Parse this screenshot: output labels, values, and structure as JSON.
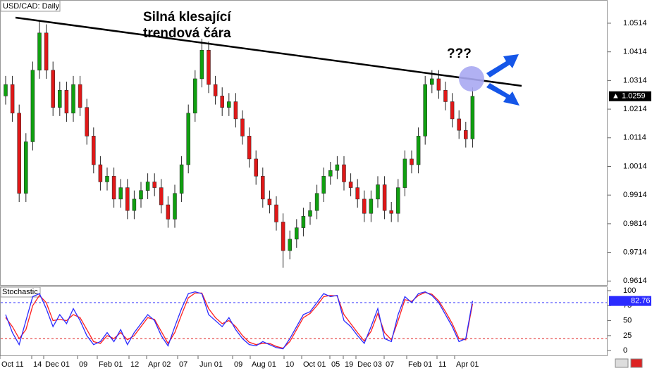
{
  "chart_data": [
    {
      "type": "candlestick",
      "title": "USD/CAD: Daily",
      "annotations": [
        "Silná klesající",
        "trendová čára",
        "???"
      ],
      "ylim": [
        0.96,
        1.0595
      ],
      "yticks": [
        1.0514,
        1.0414,
        1.0314,
        1.0214,
        1.0114,
        1.0014,
        0.9914,
        0.9814,
        0.9714,
        0.9614
      ],
      "up_color": "#10a010",
      "down_color": "#e01818",
      "open": [
        1.026,
        1.03,
        1.02,
        0.992,
        1.01,
        1.035,
        1.048,
        1.035,
        1.022,
        1.028,
        1.02,
        1.03,
        1.022,
        1.012,
        1.002,
        0.996,
        0.998,
        0.99,
        0.994,
        0.986,
        0.99,
        0.993,
        0.996,
        0.994,
        0.988,
        0.983,
        0.992,
        1.002,
        1.02,
        1.032,
        1.042,
        1.03,
        1.026,
        1.022,
        1.024,
        1.018,
        1.012,
        1.004,
        0.998,
        0.99,
        0.988,
        0.982,
        0.972,
        0.976,
        0.98,
        0.984,
        0.986,
        0.992,
        0.998,
        1.0,
        1.002,
        0.996,
        0.994,
        0.99,
        0.985,
        0.99,
        0.995,
        0.986,
        0.985,
        0.994,
        1.004,
        1.002,
        1.012,
        1.03,
        1.032,
        1.028,
        1.024,
        1.018,
        1.014,
        1.011
      ],
      "high": [
        1.033,
        1.033,
        1.023,
        1.013,
        1.038,
        1.052,
        1.051,
        1.038,
        1.031,
        1.031,
        1.033,
        1.033,
        1.025,
        1.015,
        1.005,
        1.001,
        1.001,
        0.997,
        0.997,
        0.993,
        0.996,
        0.999,
        0.999,
        0.997,
        0.991,
        0.995,
        1.005,
        1.023,
        1.035,
        1.046,
        1.045,
        1.033,
        1.029,
        1.027,
        1.027,
        1.021,
        1.015,
        1.007,
        1.001,
        0.993,
        0.991,
        0.985,
        0.979,
        0.983,
        0.987,
        0.989,
        0.995,
        1.001,
        1.003,
        1.005,
        1.005,
        0.999,
        0.997,
        0.993,
        0.993,
        0.998,
        0.998,
        0.989,
        0.997,
        1.007,
        1.007,
        1.015,
        1.033,
        1.035,
        1.035,
        1.031,
        1.027,
        1.021,
        1.017,
        1.029
      ],
      "low": [
        1.023,
        1.017,
        0.989,
        0.989,
        1.007,
        1.032,
        1.032,
        1.019,
        1.019,
        1.017,
        1.017,
        1.019,
        1.009,
        0.999,
        0.993,
        0.993,
        0.987,
        0.987,
        0.983,
        0.983,
        0.987,
        0.99,
        0.991,
        0.985,
        0.98,
        0.98,
        0.989,
        0.999,
        1.017,
        1.029,
        1.027,
        1.023,
        1.019,
        1.019,
        1.015,
        1.009,
        1.001,
        0.995,
        0.987,
        0.985,
        0.979,
        0.966,
        0.969,
        0.973,
        0.977,
        0.981,
        0.983,
        0.989,
        0.995,
        0.997,
        0.993,
        0.991,
        0.987,
        0.982,
        0.982,
        0.987,
        0.983,
        0.982,
        0.982,
        0.991,
        0.999,
        0.999,
        1.009,
        1.027,
        1.025,
        1.021,
        1.015,
        1.011,
        1.008,
        1.008
      ],
      "close": [
        1.03,
        1.02,
        0.992,
        1.01,
        1.035,
        1.048,
        1.035,
        1.022,
        1.028,
        1.02,
        1.03,
        1.022,
        1.012,
        1.002,
        0.996,
        0.998,
        0.99,
        0.994,
        0.986,
        0.99,
        0.993,
        0.996,
        0.994,
        0.988,
        0.983,
        0.992,
        1.002,
        1.02,
        1.032,
        1.042,
        1.03,
        1.026,
        1.022,
        1.024,
        1.018,
        1.012,
        1.004,
        0.998,
        0.99,
        0.988,
        0.982,
        0.972,
        0.976,
        0.98,
        0.984,
        0.986,
        0.992,
        0.998,
        1.0,
        1.002,
        0.996,
        0.994,
        0.99,
        0.985,
        0.99,
        0.995,
        0.986,
        0.985,
        0.994,
        1.004,
        1.002,
        1.012,
        1.03,
        1.032,
        1.028,
        1.024,
        1.018,
        1.014,
        1.011,
        1.0259
      ]
    },
    {
      "type": "line",
      "title": "Stochastic",
      "ylim": [
        -8,
        107
      ],
      "yticks": [
        0,
        25,
        50,
        75,
        100
      ],
      "levels": [
        80,
        20
      ],
      "xtick_labels": [
        "Oct 11",
        "14",
        "Dec 01",
        "09",
        "Feb 01",
        "12",
        "Apr 02",
        "07",
        "Jun 01",
        "09",
        "Aug 01",
        "10",
        "Oct 01",
        "05",
        "19",
        "Dec 03",
        "07",
        "Feb 01",
        "11",
        "Apr 01"
      ],
      "series": [
        {
          "color": "#2b2bff",
          "values": [
            60,
            30,
            10,
            50,
            90,
            95,
            70,
            40,
            60,
            45,
            70,
            50,
            25,
            10,
            15,
            30,
            15,
            35,
            10,
            30,
            45,
            60,
            50,
            25,
            8,
            40,
            70,
            95,
            98,
            95,
            60,
            50,
            40,
            55,
            35,
            20,
            10,
            8,
            15,
            10,
            5,
            3,
            20,
            40,
            60,
            65,
            80,
            95,
            90,
            92,
            50,
            40,
            25,
            12,
            40,
            70,
            20,
            15,
            60,
            90,
            80,
            95,
            98,
            92,
            80,
            60,
            40,
            15,
            20,
            82.76
          ]
        },
        {
          "color": "#ff2020",
          "values": [
            55,
            40,
            20,
            35,
            75,
            92,
            80,
            50,
            52,
            50,
            60,
            55,
            35,
            15,
            12,
            25,
            20,
            30,
            18,
            25,
            40,
            55,
            52,
            32,
            12,
            30,
            60,
            88,
            96,
            96,
            70,
            55,
            45,
            50,
            40,
            25,
            14,
            10,
            12,
            12,
            7,
            4,
            15,
            35,
            55,
            62,
            75,
            90,
            92,
            91,
            60,
            45,
            30,
            16,
            32,
            62,
            30,
            18,
            50,
            85,
            82,
            92,
            97,
            94,
            83,
            65,
            45,
            20,
            18,
            78
          ]
        }
      ]
    }
  ]
}
